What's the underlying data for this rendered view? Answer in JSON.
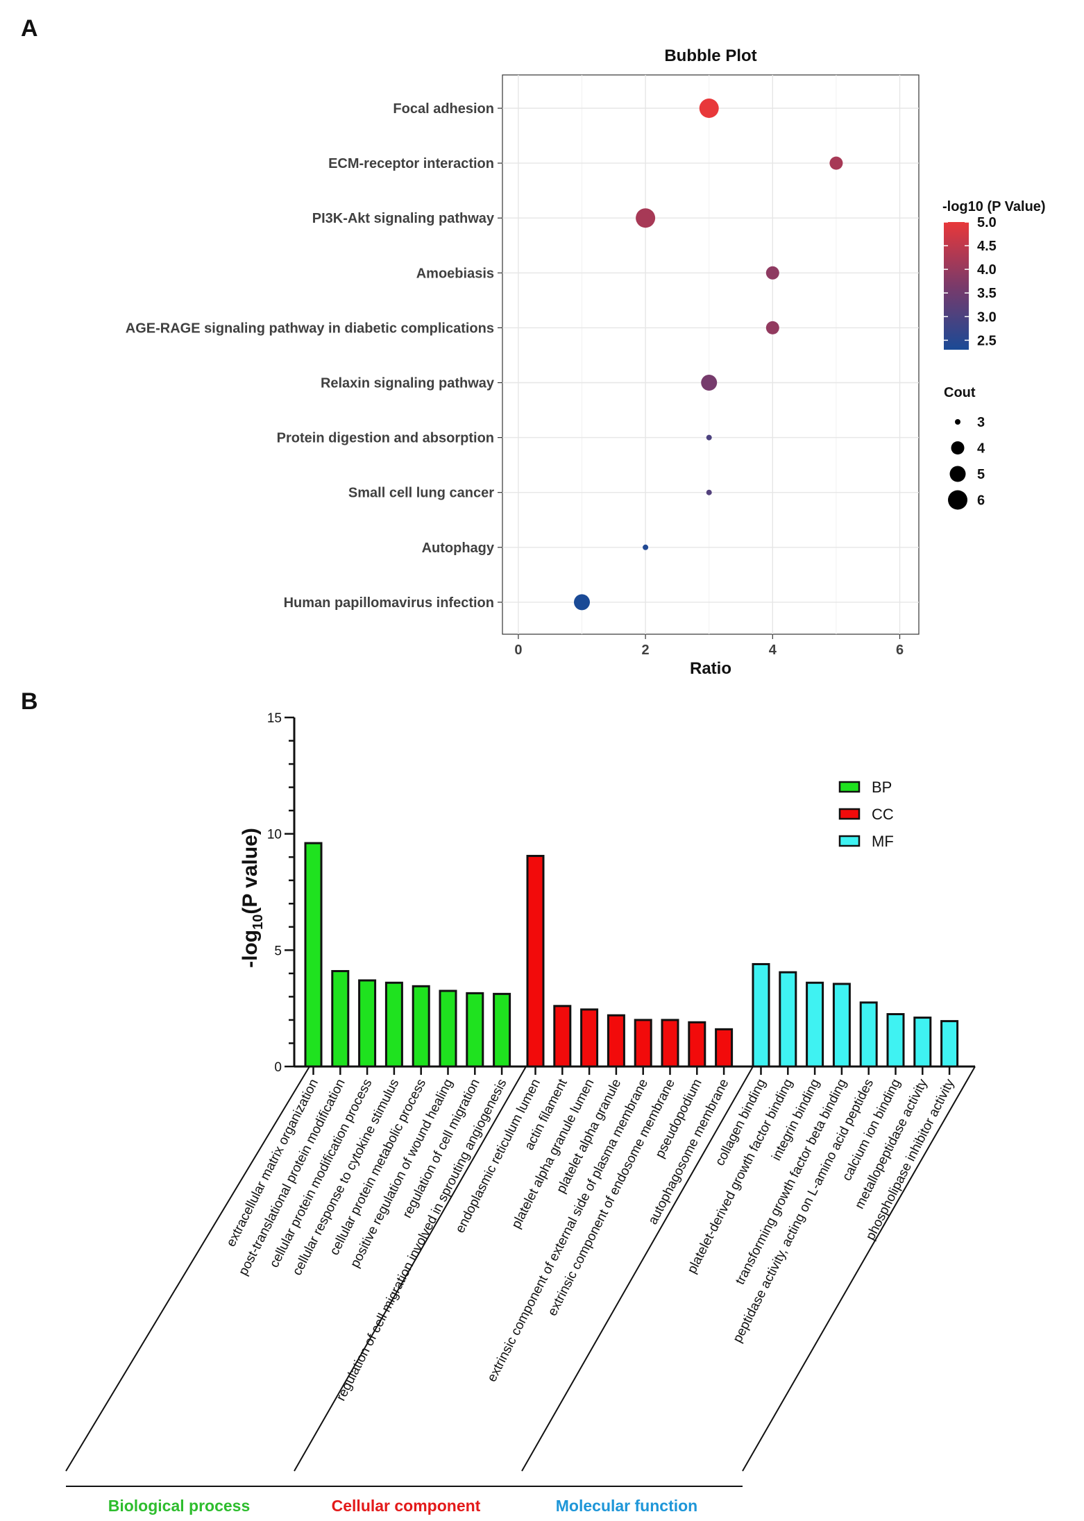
{
  "panels": {
    "a": "A",
    "b": "B"
  },
  "colors": {
    "bp": "#1fe21f",
    "cc": "#f20b0b",
    "mf": "#3ff2f2",
    "bp_label": "#2ebd2e",
    "cc_label": "#e31a1a",
    "mf_label": "#1e96d8",
    "grad_high": "#e8383a",
    "grad_mid": "#7a3a6a",
    "grad_low": "#1a4a96"
  },
  "chart_data": [
    {
      "type": "scatter",
      "title": "Bubble Plot",
      "xlabel": "Ratio",
      "ylabel": "",
      "xlim": [
        -0.25,
        6.3
      ],
      "xticks": [
        "0",
        "2",
        "4",
        "6"
      ],
      "grid": true,
      "terms": [
        "Focal adhesion",
        "ECM-receptor interaction",
        "PI3K-Akt signaling pathway",
        "Amoebiasis",
        "AGE-RAGE signaling pathway in diabetic complications",
        "Relaxin signaling pathway",
        "Protein digestion and absorption",
        "Small cell lung cancer",
        "Autophagy",
        "Human papillomavirus infection"
      ],
      "ratio": [
        3,
        5,
        2,
        4,
        4,
        3,
        3,
        3,
        2,
        1
      ],
      "count": [
        6,
        4,
        6,
        4,
        4,
        5,
        3,
        3,
        3,
        5
      ],
      "neglog10p": [
        5.0,
        4.2,
        4.2,
        3.9,
        3.95,
        3.6,
        3.0,
        3.1,
        2.4,
        2.3
      ],
      "color_legend": {
        "title": "-log10 (P Value)",
        "ticks": [
          "5.0",
          "4.5",
          "4.0",
          "3.5",
          "3.0",
          "2.5"
        ],
        "range": [
          2.3,
          5.0
        ]
      },
      "size_legend": {
        "title": "Cout",
        "values": [
          "3",
          "4",
          "5",
          "6"
        ]
      }
    },
    {
      "type": "bar",
      "ylabel": "-log",
      "ylabel_sub": "10",
      "ylabel_tail": "(P value)",
      "ylim": [
        0,
        15
      ],
      "yticks": [
        "0",
        "5",
        "10",
        "15"
      ],
      "legend": [
        "BP",
        "CC",
        "MF"
      ],
      "groups": [
        "Biological process",
        "Cellular component",
        "Molecular function"
      ],
      "series": [
        {
          "name": "BP",
          "categories": [
            "extracellular matrix organization",
            "post-translational protein modification",
            "cellular protein modification process",
            "cellular response to cytokine stimulus",
            "cellular protein metabolic process",
            "positive regulation of wound healing",
            "regulation of cell migration",
            "regulation of cell migration involved in sprouting angiogenesis"
          ],
          "values": [
            9.6,
            4.1,
            3.7,
            3.6,
            3.45,
            3.25,
            3.15,
            3.12
          ]
        },
        {
          "name": "CC",
          "categories": [
            "endoplasmic reticulum lumen",
            "actin filament",
            "platelet alpha granule lumen",
            "platelet alpha granule",
            "extrinsic component of external side of plasma membrane",
            "extrinsic component of endosome membrane",
            "pseudopodium",
            "autophagosome membrane"
          ],
          "values": [
            9.05,
            2.6,
            2.45,
            2.2,
            2.0,
            2.0,
            1.9,
            1.6
          ]
        },
        {
          "name": "MF",
          "categories": [
            "collagen binding",
            "platelet-derived growth factor binding",
            "integrin binding",
            "transforming growth factor beta binding",
            "peptidase activity, acting on L-amino acid peptides",
            "calcium ion binding",
            "metallopeptidase activity",
            "phospholipase inhibitor activity"
          ],
          "values": [
            4.4,
            4.05,
            3.6,
            3.55,
            2.75,
            2.25,
            2.1,
            1.95
          ]
        }
      ]
    }
  ]
}
